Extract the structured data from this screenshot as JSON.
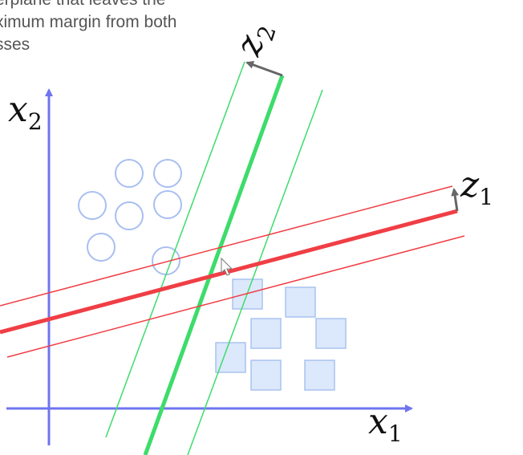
{
  "caption": {
    "lines": [
      "erplane that leaves the",
      "ximum margin from both",
      "sses"
    ]
  },
  "axes": {
    "x_label": "x",
    "x_subscript": "1",
    "y_label": "x",
    "y_subscript": "2"
  },
  "hyperplanes": {
    "z1": {
      "label": "z",
      "subscript": "1",
      "color": "#f03e45"
    },
    "z2": {
      "label": "z",
      "subscript": "2",
      "color": "#3ddc6b"
    }
  },
  "colors": {
    "axis": "#6f74f0",
    "circle_stroke": "#a8bff0",
    "square_fill": "#dce8fb",
    "square_stroke": "#a9c3ef",
    "arrow": "#666666"
  },
  "classes": [
    {
      "name": "circles",
      "count": 7
    },
    {
      "name": "squares",
      "count": 7
    }
  ]
}
